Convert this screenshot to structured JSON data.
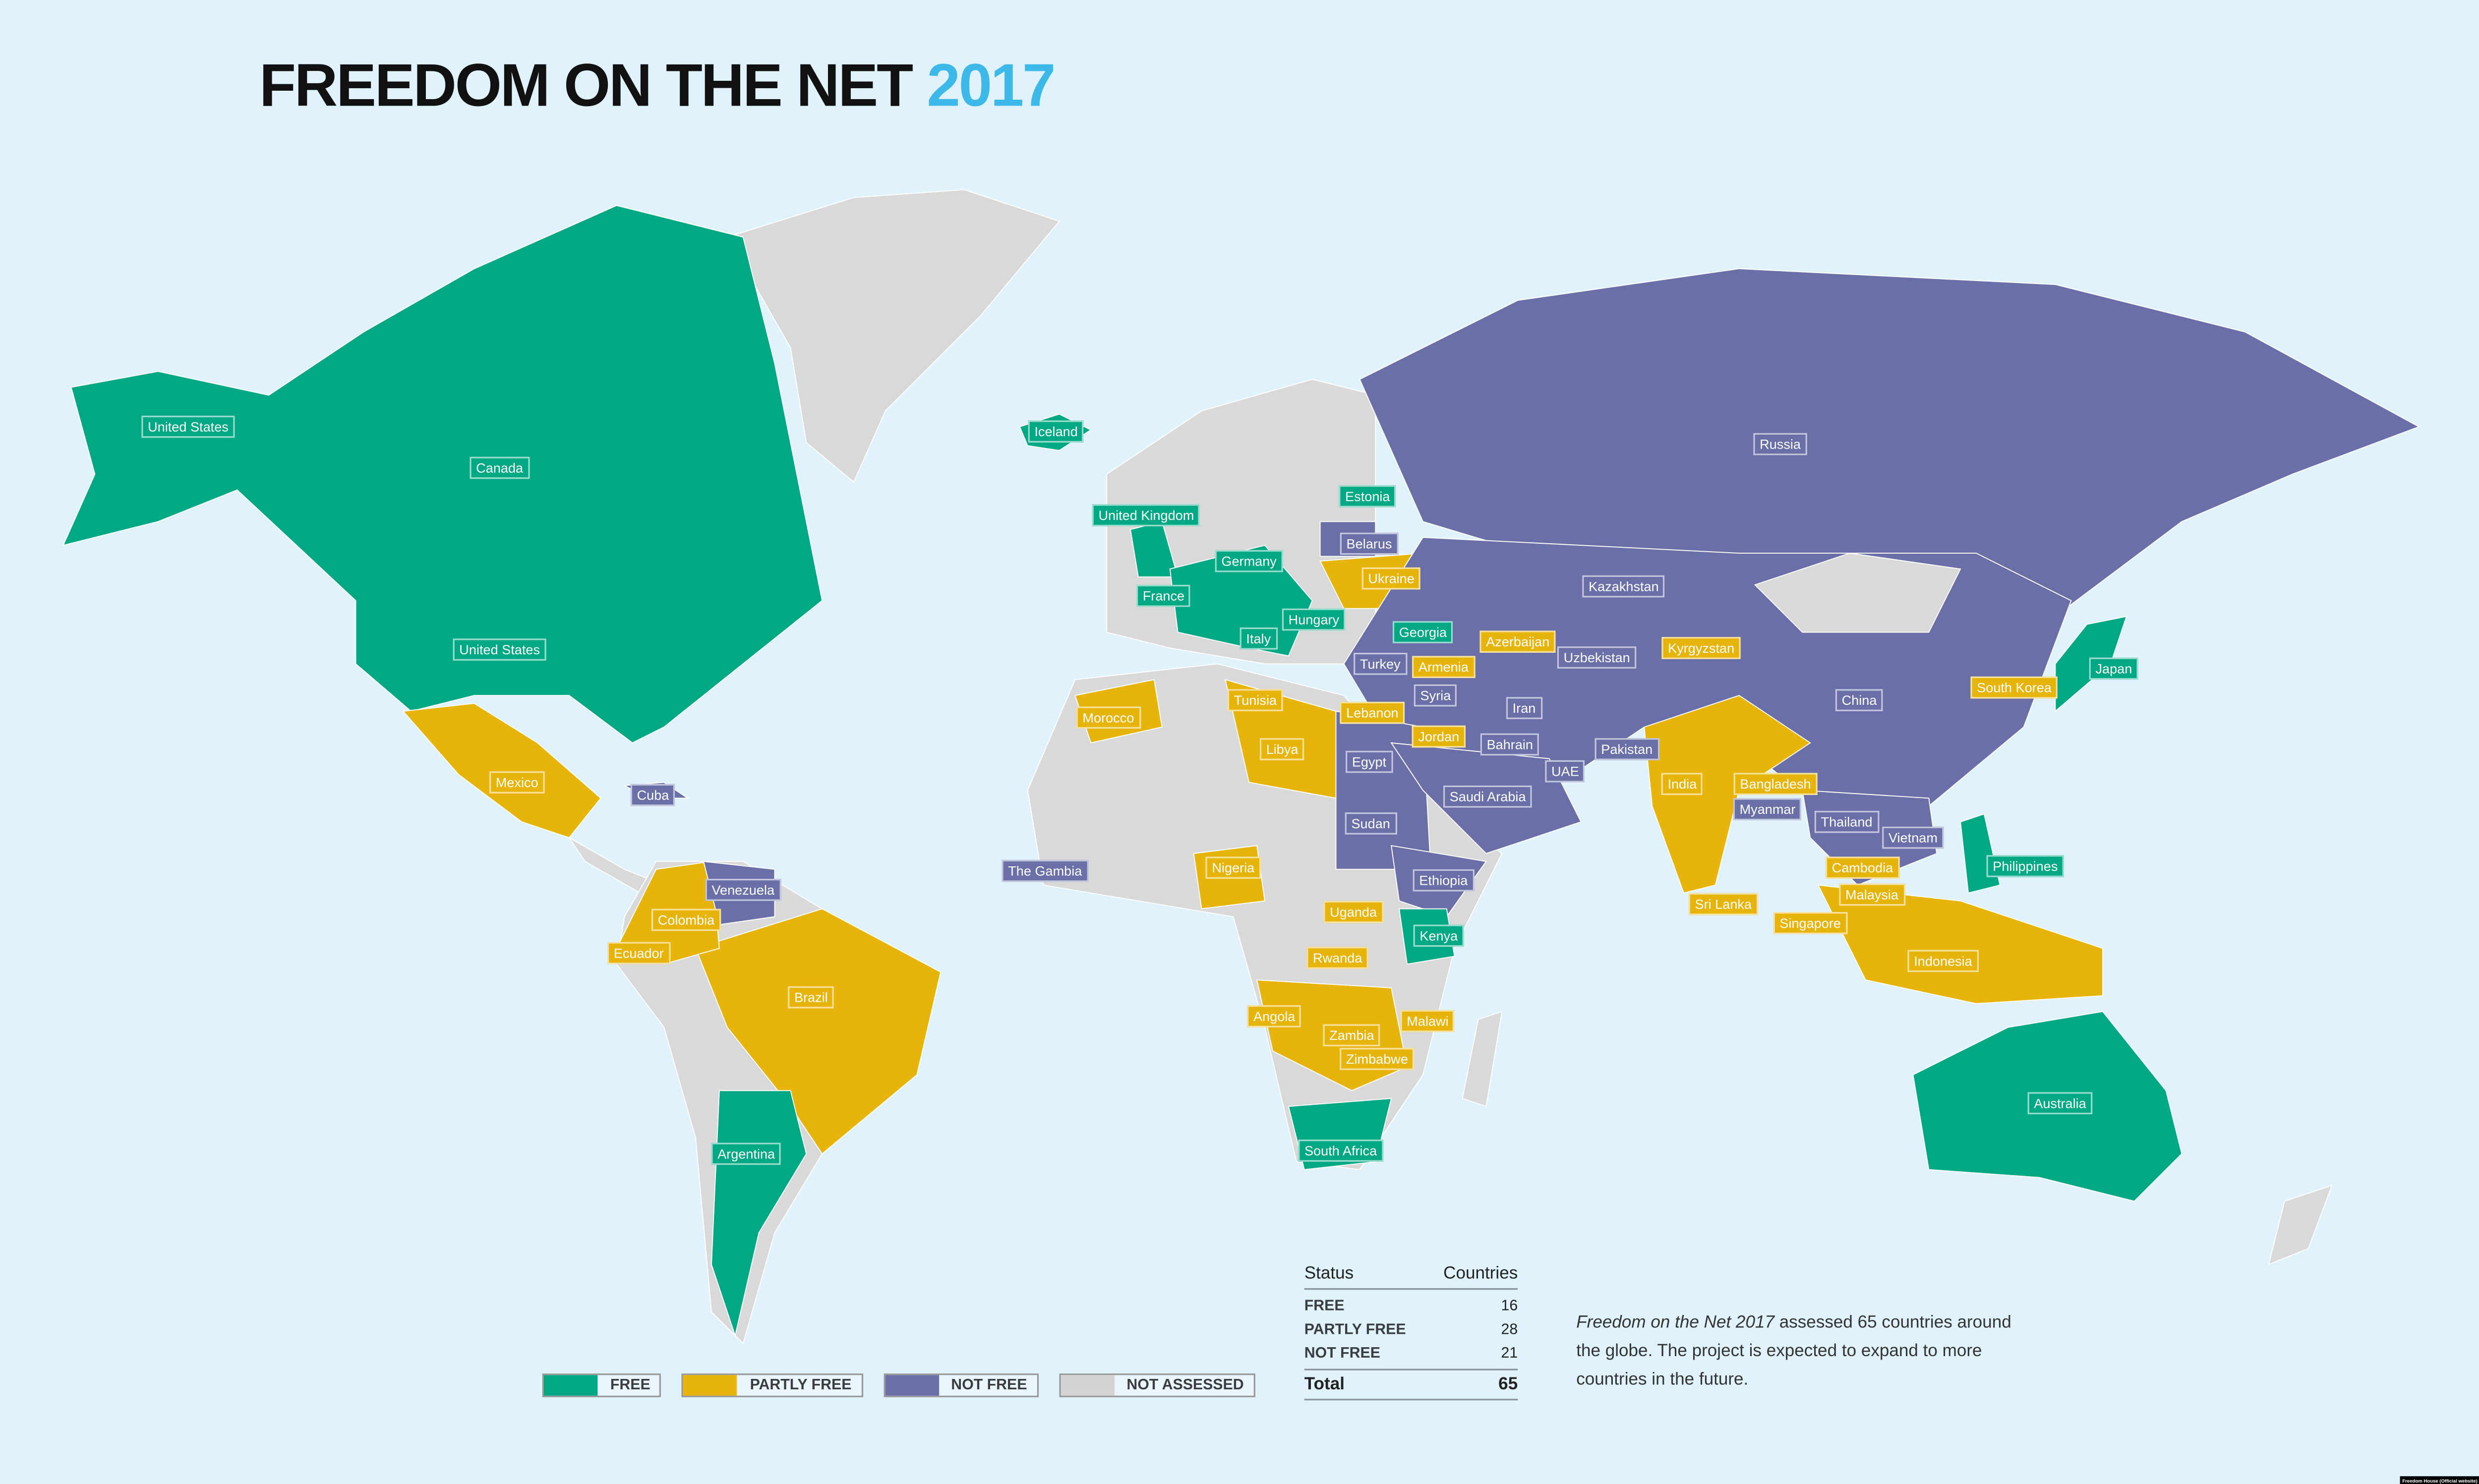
{
  "title": {
    "text": "FREEDOM ON THE NET",
    "year": "2017"
  },
  "colors": {
    "free": "#00a884",
    "partly_free": "#e6b40a",
    "not_free": "#6a6fa8",
    "not_assessed": "#d9d9d9",
    "background": "#e0f2fc",
    "title_accent": "#3cb9e8"
  },
  "legend": [
    {
      "label": "FREE",
      "color": "#00a884"
    },
    {
      "label": "PARTLY FREE",
      "color": "#e6b40a"
    },
    {
      "label": "NOT FREE",
      "color": "#6a6fa8"
    },
    {
      "label": "NOT ASSESSED",
      "color": "#d9d9d9"
    }
  ],
  "summary_table": {
    "headers": [
      "Status",
      "Countries"
    ],
    "rows": [
      {
        "status": "FREE",
        "count": "16"
      },
      {
        "status": "PARTLY FREE",
        "count": "28"
      },
      {
        "status": "NOT FREE",
        "count": "21"
      }
    ],
    "total": {
      "label": "Total",
      "count": "65"
    }
  },
  "note": {
    "italic": "Freedom on the Net 2017",
    "text": " assessed 65 countries around the globe. The project is expected to expand to more countries in the future."
  },
  "credit": "Freedom House (Official website)",
  "countries": [
    {
      "name": "United States",
      "status": "free"
    },
    {
      "name": "Canada",
      "status": "free"
    },
    {
      "name": "United States",
      "status": "free"
    },
    {
      "name": "Iceland",
      "status": "free"
    },
    {
      "name": "United Kingdom",
      "status": "free"
    },
    {
      "name": "Estonia",
      "status": "free"
    },
    {
      "name": "Germany",
      "status": "free"
    },
    {
      "name": "Belarus",
      "status": "notfree"
    },
    {
      "name": "Ukraine",
      "status": "partly"
    },
    {
      "name": "France",
      "status": "free"
    },
    {
      "name": "Hungary",
      "status": "free"
    },
    {
      "name": "Georgia",
      "status": "free"
    },
    {
      "name": "Azerbaijan",
      "status": "partly"
    },
    {
      "name": "Italy",
      "status": "free"
    },
    {
      "name": "Kazakhstan",
      "status": "notfree"
    },
    {
      "name": "Russia",
      "status": "notfree"
    },
    {
      "name": "Kyrgyzstan",
      "status": "partly"
    },
    {
      "name": "Uzbekistan",
      "status": "notfree"
    },
    {
      "name": "Turkey",
      "status": "notfree"
    },
    {
      "name": "Armenia",
      "status": "partly"
    },
    {
      "name": "Syria",
      "status": "notfree"
    },
    {
      "name": "Lebanon",
      "status": "partly"
    },
    {
      "name": "Iran",
      "status": "notfree"
    },
    {
      "name": "Jordan",
      "status": "partly"
    },
    {
      "name": "Bahrain",
      "status": "notfree"
    },
    {
      "name": "Tunisia",
      "status": "partly"
    },
    {
      "name": "Morocco",
      "status": "partly"
    },
    {
      "name": "Libya",
      "status": "partly"
    },
    {
      "name": "Egypt",
      "status": "notfree"
    },
    {
      "name": "Saudi Arabia",
      "status": "notfree"
    },
    {
      "name": "UAE",
      "status": "notfree"
    },
    {
      "name": "Pakistan",
      "status": "notfree"
    },
    {
      "name": "China",
      "status": "notfree"
    },
    {
      "name": "South Korea",
      "status": "partly"
    },
    {
      "name": "Japan",
      "status": "free"
    },
    {
      "name": "India",
      "status": "partly"
    },
    {
      "name": "Bangladesh",
      "status": "partly"
    },
    {
      "name": "Myanmar",
      "status": "notfree"
    },
    {
      "name": "Thailand",
      "status": "notfree"
    },
    {
      "name": "Vietnam",
      "status": "notfree"
    },
    {
      "name": "Cambodia",
      "status": "partly"
    },
    {
      "name": "Philippines",
      "status": "free"
    },
    {
      "name": "Malaysia",
      "status": "partly"
    },
    {
      "name": "Sri Lanka",
      "status": "partly"
    },
    {
      "name": "Singapore",
      "status": "partly"
    },
    {
      "name": "Indonesia",
      "status": "partly"
    },
    {
      "name": "Sudan",
      "status": "notfree"
    },
    {
      "name": "Ethiopia",
      "status": "notfree"
    },
    {
      "name": "The Gambia",
      "status": "notfree"
    },
    {
      "name": "Nigeria",
      "status": "partly"
    },
    {
      "name": "Uganda",
      "status": "partly"
    },
    {
      "name": "Kenya",
      "status": "free"
    },
    {
      "name": "Rwanda",
      "status": "partly"
    },
    {
      "name": "Angola",
      "status": "partly"
    },
    {
      "name": "Zambia",
      "status": "partly"
    },
    {
      "name": "Malawi",
      "status": "partly"
    },
    {
      "name": "Zimbabwe",
      "status": "partly"
    },
    {
      "name": "South Africa",
      "status": "free"
    },
    {
      "name": "Mexico",
      "status": "partly"
    },
    {
      "name": "Cuba",
      "status": "notfree"
    },
    {
      "name": "Venezuela",
      "status": "notfree"
    },
    {
      "name": "Colombia",
      "status": "partly"
    },
    {
      "name": "Ecuador",
      "status": "partly"
    },
    {
      "name": "Brazil",
      "status": "partly"
    },
    {
      "name": "Argentina",
      "status": "free"
    },
    {
      "name": "Australia",
      "status": "free"
    }
  ]
}
